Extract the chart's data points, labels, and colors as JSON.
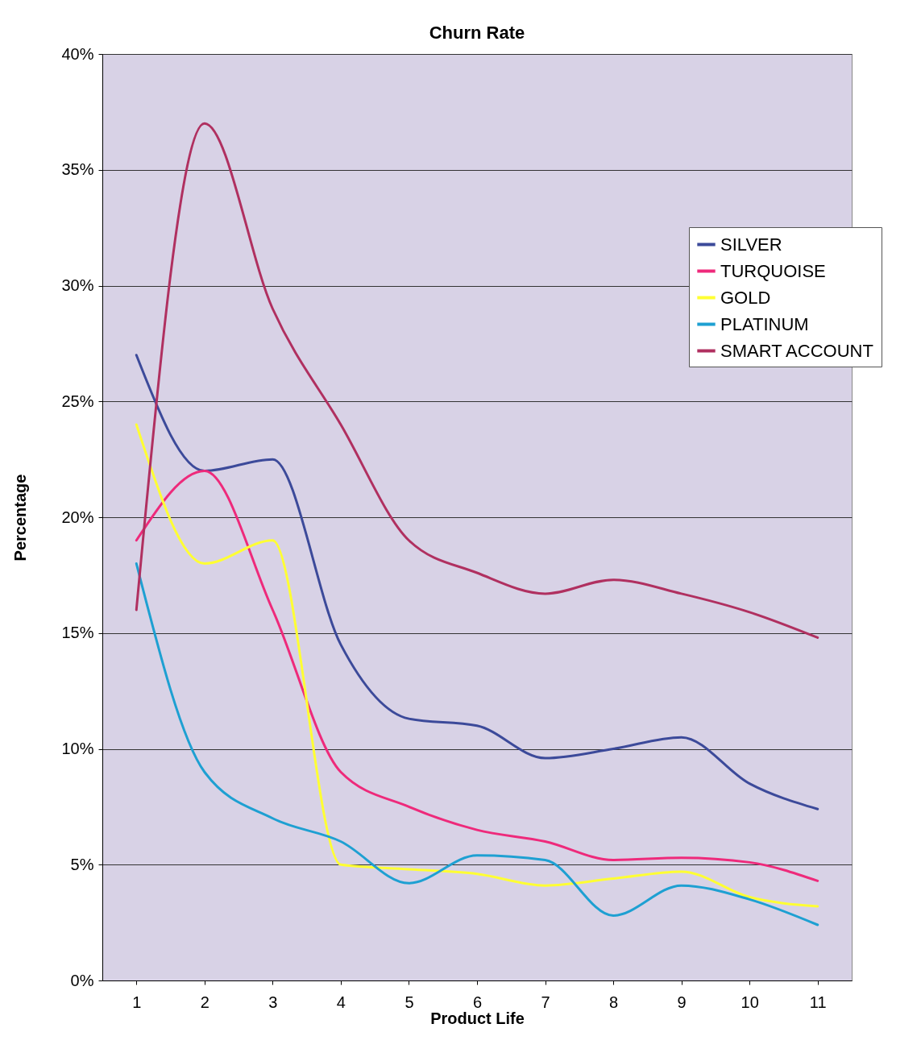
{
  "chart_data": {
    "type": "line",
    "title": "Churn Rate",
    "xlabel": "Product Life",
    "ylabel": "Percentage",
    "categories": [
      "1",
      "2",
      "3",
      "4",
      "5",
      "6",
      "7",
      "8",
      "9",
      "10",
      "11"
    ],
    "series": [
      {
        "name": "SILVER",
        "color": "#3c4a9a",
        "values": [
          27,
          22,
          22.5,
          14.5,
          11.3,
          11,
          9.6,
          10,
          10.5,
          8.5,
          7.4
        ]
      },
      {
        "name": "TURQUOISE",
        "color": "#ee2a7b",
        "values": [
          19,
          22,
          16,
          9,
          7.5,
          6.5,
          6,
          5.2,
          5.3,
          5.1,
          4.3
        ]
      },
      {
        "name": "GOLD",
        "color": "#ffff33",
        "values": [
          24,
          18,
          19,
          5,
          4.8,
          4.6,
          4.1,
          4.4,
          4.7,
          3.6,
          3.2
        ]
      },
      {
        "name": "PLATINUM",
        "color": "#1ea0d2",
        "values": [
          18,
          9,
          7,
          6,
          4.2,
          5.4,
          5.2,
          2.8,
          4.1,
          3.5,
          2.4
        ]
      },
      {
        "name": "SMART ACCOUNT",
        "color": "#b03060",
        "values": [
          16,
          37,
          29,
          24,
          19,
          17.6,
          16.7,
          17.3,
          16.7,
          15.9,
          14.8
        ]
      }
    ],
    "ylim": [
      0,
      40
    ],
    "yticks": [
      {
        "value": 0,
        "label": "0%"
      },
      {
        "value": 5,
        "label": "5%"
      },
      {
        "value": 10,
        "label": "10%"
      },
      {
        "value": 15,
        "label": "15%"
      },
      {
        "value": 20,
        "label": "20%"
      },
      {
        "value": 25,
        "label": "25%"
      },
      {
        "value": 30,
        "label": "30%"
      },
      {
        "value": 35,
        "label": "35%"
      },
      {
        "value": 40,
        "label": "40%"
      }
    ],
    "grid": "y",
    "legend": "right",
    "line_style": "solid"
  }
}
